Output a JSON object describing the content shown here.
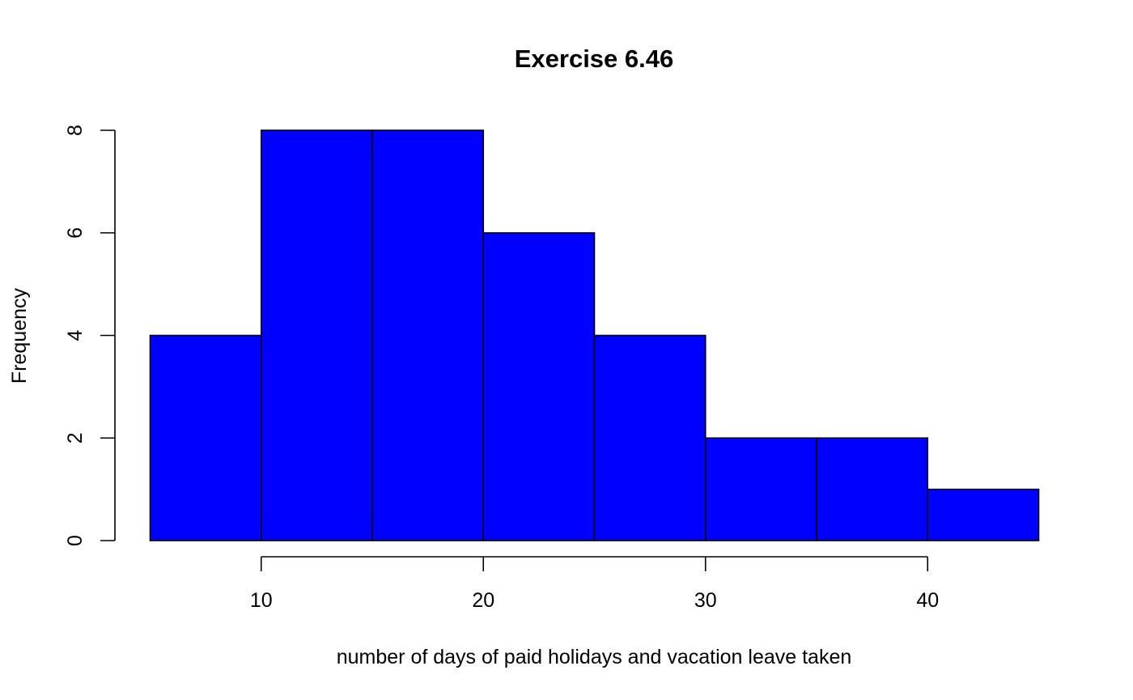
{
  "chart_data": {
    "type": "bar",
    "title": "Exercise 6.46",
    "xlabel": "number of days of paid holidays and vacation leave taken",
    "ylabel": "Frequency",
    "bin_edges": [
      5,
      10,
      15,
      20,
      25,
      30,
      35,
      40,
      45
    ],
    "values": [
      4,
      8,
      8,
      6,
      4,
      2,
      2,
      1
    ],
    "xlim": [
      5,
      45
    ],
    "ylim": [
      0,
      8
    ],
    "x_ticks": [
      10,
      20,
      30,
      40
    ],
    "y_ticks": [
      0,
      2,
      4,
      6,
      8
    ],
    "bar_color": "#0000ff",
    "grid": false,
    "legend": "none"
  }
}
